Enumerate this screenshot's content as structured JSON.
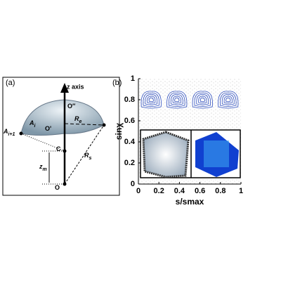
{
  "panel_a": {
    "label": "(a)",
    "axis_label": "z axis",
    "points": [
      {
        "main": "O″"
      },
      {
        "main": "A",
        "sub": "i"
      },
      {
        "main": "O'"
      },
      {
        "main": "R",
        "sub": "e"
      },
      {
        "main": "A",
        "sub": "i+1"
      },
      {
        "main": "C"
      },
      {
        "main": "z",
        "sub": "m"
      },
      {
        "main": "O"
      },
      {
        "main": "R",
        "sub": "s"
      }
    ]
  },
  "chart_data": {
    "type": "scatter",
    "panel_label": "(b)",
    "xlabel": "s/smax",
    "ylabel": "sinχ",
    "xlim": [
      0,
      1
    ],
    "ylim": [
      0,
      1
    ],
    "xticks": [
      0,
      0.2,
      0.4,
      0.6,
      0.8,
      1
    ],
    "yticks": [
      0,
      0.2,
      0.4,
      0.6,
      0.8,
      1
    ],
    "color": "#3050c0",
    "x": [
      0.125,
      0.375,
      0.625,
      0.875
    ],
    "values": [
      0.8,
      0.8,
      0.8,
      0.8
    ]
  }
}
